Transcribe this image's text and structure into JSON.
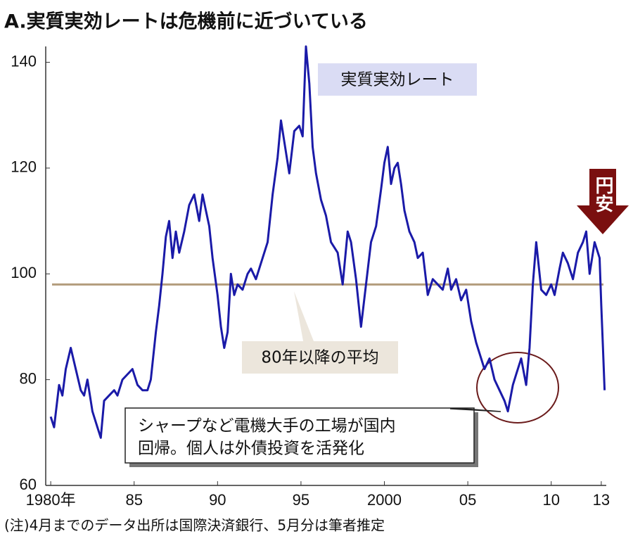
{
  "chart_data": {
    "type": "line",
    "title": "A.実質実効レートは危機前に近づいている",
    "footnote": "(注)4月までのデータ出所は国際決済銀行、5月分は筆者推定",
    "xlim": [
      1979.7,
      2013.3
    ],
    "ylim": [
      60,
      143
    ],
    "yticks": [
      60,
      80,
      100,
      120,
      140
    ],
    "xticks": [
      {
        "value": 1980,
        "label": "1980年"
      },
      {
        "value": 1985,
        "label": "85"
      },
      {
        "value": 1990,
        "label": "90"
      },
      {
        "value": 1995,
        "label": "95"
      },
      {
        "value": 2000,
        "label": "2000"
      },
      {
        "value": 2005,
        "label": "05"
      },
      {
        "value": 2010,
        "label": "10"
      },
      {
        "value": 2013,
        "label": "13"
      }
    ],
    "average": {
      "label": "80年以降の平均",
      "value": 98,
      "color": "#b39c7d"
    },
    "callout": [
      "シャープなど電機大手の工場が国内",
      "回帰。個人は外債投資を活発化"
    ],
    "arrow_label": "円安",
    "series": [
      {
        "name": "実質実効レート",
        "color": "#1a1aa8",
        "x": [
          1980.0,
          1980.2,
          1980.5,
          1980.7,
          1980.9,
          1981.2,
          1981.5,
          1981.8,
          1982.0,
          1982.2,
          1982.5,
          1982.8,
          1983.0,
          1983.2,
          1983.5,
          1983.8,
          1984.0,
          1984.3,
          1984.6,
          1984.9,
          1985.2,
          1985.5,
          1985.8,
          1986.0,
          1986.3,
          1986.5,
          1986.7,
          1986.9,
          1987.1,
          1987.3,
          1987.5,
          1987.7,
          1988.0,
          1988.3,
          1988.6,
          1988.9,
          1989.1,
          1989.3,
          1989.5,
          1989.7,
          1990.0,
          1990.2,
          1990.4,
          1990.6,
          1990.8,
          1991.0,
          1991.2,
          1991.5,
          1991.8,
          1992.0,
          1992.3,
          1992.6,
          1993.0,
          1993.3,
          1993.6,
          1993.8,
          1994.0,
          1994.3,
          1994.6,
          1994.9,
          1995.1,
          1995.3,
          1995.5,
          1995.7,
          1995.9,
          1996.2,
          1996.5,
          1996.8,
          1997.2,
          1997.5,
          1997.8,
          1998.0,
          1998.3,
          1998.6,
          1998.9,
          1999.2,
          1999.5,
          1999.8,
          2000.0,
          2000.2,
          2000.4,
          2000.6,
          2000.8,
          2001.0,
          2001.2,
          2001.5,
          2001.8,
          2002.0,
          2002.3,
          2002.6,
          2002.9,
          2003.2,
          2003.5,
          2003.8,
          2004.0,
          2004.3,
          2004.6,
          2004.9,
          2005.2,
          2005.5,
          2005.8,
          2006.0,
          2006.3,
          2006.6,
          2006.9,
          2007.2,
          2007.4,
          2007.7,
          2007.9,
          2008.2,
          2008.5,
          2008.7,
          2008.9,
          2009.1,
          2009.4,
          2009.7,
          2010.0,
          2010.2,
          2010.5,
          2010.7,
          2011.0,
          2011.3,
          2011.6,
          2011.9,
          2012.1,
          2012.3,
          2012.6,
          2012.9,
          2013.0,
          2013.1,
          2013.2
        ],
        "values": [
          73,
          71,
          79,
          77,
          82,
          86,
          82,
          78,
          77,
          80,
          74,
          71,
          69,
          76,
          77,
          78,
          77,
          80,
          81,
          82,
          79,
          78,
          78,
          80,
          89,
          94,
          100,
          107,
          110,
          103,
          108,
          104,
          108,
          113,
          115,
          110,
          115,
          112,
          109,
          103,
          96,
          90,
          86,
          89,
          100,
          96,
          98,
          97,
          100,
          101,
          99,
          102,
          106,
          115,
          122,
          129,
          125,
          119,
          127,
          128,
          126,
          143,
          136,
          124,
          119,
          114,
          111,
          106,
          104,
          98,
          108,
          106,
          99,
          90,
          98,
          106,
          109,
          116,
          121,
          124,
          117,
          120,
          121,
          117,
          112,
          108,
          106,
          103,
          104,
          96,
          99,
          98,
          97,
          101,
          97,
          99,
          95,
          97,
          91,
          87,
          84,
          82,
          84,
          80,
          78,
          76,
          74,
          79,
          81,
          84,
          79,
          86,
          98,
          106,
          97,
          96,
          98,
          96,
          101,
          104,
          102,
          99,
          104,
          106,
          108,
          100,
          106,
          103,
          94,
          86,
          78
        ]
      }
    ]
  }
}
